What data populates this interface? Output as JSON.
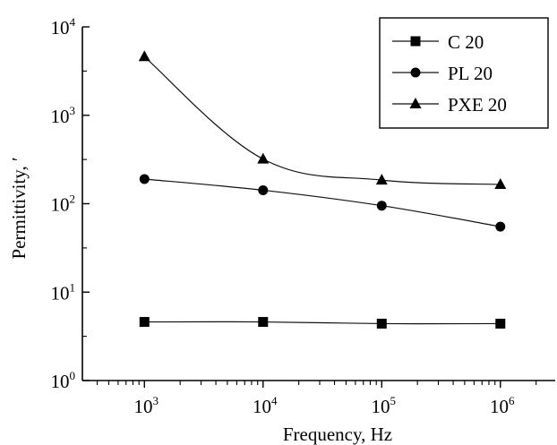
{
  "chart_data": {
    "type": "line",
    "title": "",
    "xlabel": "Frequency, Hz",
    "ylabel": "Permittivity, ′",
    "x_scale": "log",
    "y_scale": "log",
    "xlim": [
      300,
      3000000
    ],
    "ylim": [
      1,
      10000
    ],
    "x_ticks": [
      {
        "value": 1000,
        "base": "10",
        "exp": "3"
      },
      {
        "value": 10000,
        "base": "10",
        "exp": "4"
      },
      {
        "value": 100000,
        "base": "10",
        "exp": "5"
      },
      {
        "value": 1000000,
        "base": "10",
        "exp": "6"
      }
    ],
    "y_ticks": [
      {
        "value": 1,
        "base": "10",
        "exp": "0"
      },
      {
        "value": 10,
        "base": "10",
        "exp": "1"
      },
      {
        "value": 100,
        "base": "10",
        "exp": "2"
      },
      {
        "value": 1000,
        "base": "10",
        "exp": "3"
      },
      {
        "value": 10000,
        "base": "10",
        "exp": "4"
      }
    ],
    "x": [
      1000,
      10000,
      100000,
      1000000
    ],
    "series": [
      {
        "name": "C 20",
        "marker": "square",
        "values": [
          4.6,
          4.6,
          4.4,
          4.4
        ]
      },
      {
        "name": "PL 20",
        "marker": "circle",
        "values": [
          190,
          142,
          95,
          55
        ]
      },
      {
        "name": "PXE 20",
        "marker": "triangle",
        "values": [
          4600,
          320,
          185,
          165
        ]
      }
    ],
    "legend_position": "top-right",
    "grid": false
  }
}
